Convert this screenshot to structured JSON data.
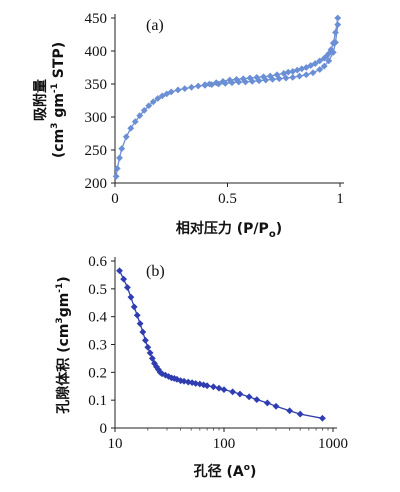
{
  "chart_data": [
    {
      "panel": "(a)",
      "type": "line",
      "xlabel_prefix": "相对压力 (P/P",
      "xlabel_sub": "o",
      "xlabel_suffix": ")",
      "ylabel_line1": "吸附量",
      "ylabel_line2_pre": "(cm",
      "ylabel_line2_sup": "3",
      "ylabel_line2_mid": " gm",
      "ylabel_line2_sup2": "-1",
      "ylabel_line2_post": " STP)",
      "xlim": [
        0,
        1
      ],
      "ylim": [
        200,
        450
      ],
      "xticks": [
        "0",
        "0.5",
        "1"
      ],
      "xtick_values": [
        0,
        0.5,
        1
      ],
      "yticks": [
        "200",
        "250",
        "300",
        "350",
        "400",
        "450"
      ],
      "ytick_values": [
        200,
        250,
        300,
        350,
        400,
        450
      ],
      "marker": "diamond",
      "color": "#6a8fd4",
      "series": [
        {
          "x": [
            0.005,
            0.01,
            0.02,
            0.03,
            0.05,
            0.07,
            0.09,
            0.11,
            0.13,
            0.15,
            0.17,
            0.19,
            0.21,
            0.23,
            0.25,
            0.28,
            0.31,
            0.34,
            0.37,
            0.4,
            0.43,
            0.46,
            0.49,
            0.52,
            0.55,
            0.58,
            0.61,
            0.64,
            0.67,
            0.7,
            0.73,
            0.76,
            0.79,
            0.82,
            0.85,
            0.88,
            0.91,
            0.93,
            0.95,
            0.97,
            0.98,
            0.99
          ],
          "y": [
            210,
            222,
            238,
            252,
            270,
            283,
            293,
            302,
            310,
            317,
            323,
            328,
            332,
            335,
            338,
            341,
            343,
            345,
            347,
            348,
            349,
            350,
            351,
            352,
            353,
            353,
            354,
            355,
            356,
            357,
            358,
            359,
            360,
            362,
            364,
            367,
            372,
            377,
            385,
            398,
            413,
            440
          ]
        },
        {
          "x": [
            0.99,
            0.98,
            0.97,
            0.96,
            0.95,
            0.94,
            0.93,
            0.91,
            0.89,
            0.87,
            0.85,
            0.83,
            0.81,
            0.79,
            0.77,
            0.75,
            0.72,
            0.69,
            0.66,
            0.63,
            0.6,
            0.57,
            0.54,
            0.51,
            0.48,
            0.45,
            0.42,
            0.4
          ],
          "y": [
            450,
            428,
            412,
            402,
            396,
            392,
            389,
            385,
            381,
            378,
            375,
            373,
            371,
            369,
            368,
            366,
            364,
            362,
            361,
            360,
            359,
            358,
            357,
            356,
            354,
            352,
            350,
            349
          ]
        }
      ]
    },
    {
      "panel": "(b)",
      "type": "line",
      "xscale": "log",
      "xlabel_prefix": "孔径 (A",
      "xlabel_sup": "o",
      "xlabel_suffix": ")",
      "ylabel_pre": "孔隙体积 (cm",
      "ylabel_sup": "3",
      "ylabel_mid": "gm",
      "ylabel_sup2": "-1",
      "ylabel_post": ")",
      "xlim": [
        10,
        1000
      ],
      "ylim": [
        0,
        0.6
      ],
      "xticks": [
        "10",
        "100",
        "1000"
      ],
      "xtick_values": [
        10,
        100,
        1000
      ],
      "yticks": [
        "0",
        "0.1",
        "0.2",
        "0.3",
        "0.4",
        "0.5",
        "0.6"
      ],
      "ytick_values": [
        0,
        0.1,
        0.2,
        0.3,
        0.4,
        0.5,
        0.6
      ],
      "marker": "diamond",
      "color": "#2f3db0",
      "series": [
        {
          "x": [
            11,
            12,
            13,
            14,
            15,
            16,
            17,
            18,
            19,
            20,
            21,
            22,
            23,
            24,
            25,
            26,
            27,
            29,
            31,
            33,
            35,
            37,
            40,
            43,
            47,
            51,
            55,
            60,
            65,
            70,
            80,
            90,
            100,
            120,
            140,
            170,
            200,
            250,
            300,
            400,
            500,
            800
          ],
          "y": [
            0.565,
            0.535,
            0.505,
            0.47,
            0.435,
            0.405,
            0.375,
            0.345,
            0.315,
            0.29,
            0.27,
            0.25,
            0.232,
            0.22,
            0.21,
            0.2,
            0.195,
            0.19,
            0.185,
            0.18,
            0.178,
            0.175,
            0.17,
            0.168,
            0.165,
            0.163,
            0.16,
            0.158,
            0.155,
            0.152,
            0.148,
            0.143,
            0.138,
            0.13,
            0.122,
            0.112,
            0.102,
            0.09,
            0.078,
            0.062,
            0.05,
            0.035
          ]
        }
      ]
    }
  ]
}
